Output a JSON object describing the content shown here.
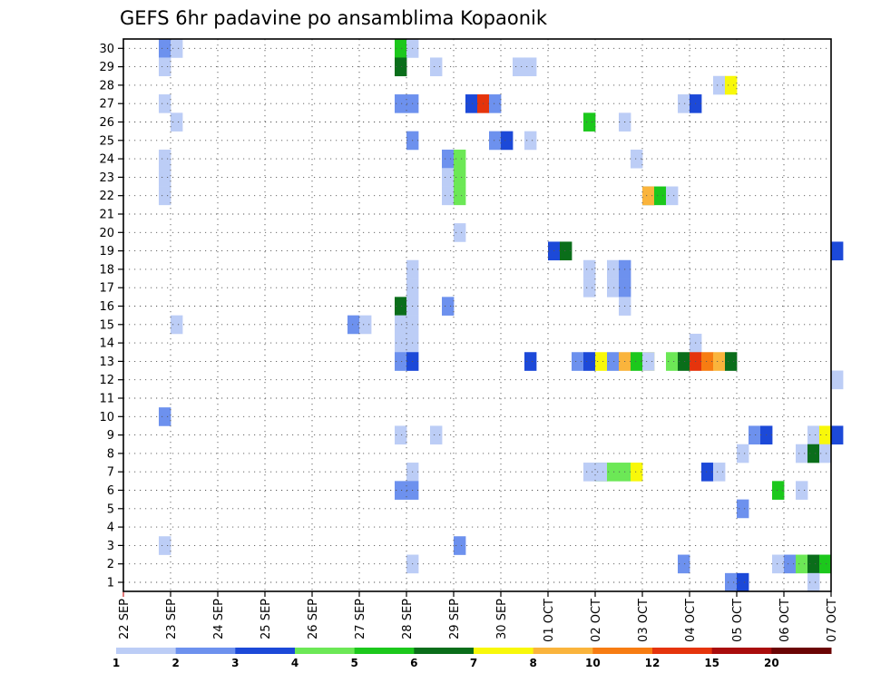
{
  "chart_data": {
    "type": "heatmap",
    "title": "GEFS 6hr padavine po ansamblima Kopaonik",
    "y_categories": [
      "1",
      "2",
      "3",
      "4",
      "5",
      "6",
      "7",
      "8",
      "9",
      "10",
      "11",
      "12",
      "13",
      "14",
      "15",
      "16",
      "17",
      "18",
      "19",
      "20",
      "21",
      "22",
      "23",
      "24",
      "25",
      "26",
      "27",
      "28",
      "29",
      "30"
    ],
    "x_tick_labels": [
      "22 SEP",
      "23 SEP",
      "24 SEP",
      "25 SEP",
      "26 SEP",
      "27 SEP",
      "28 SEP",
      "29 SEP",
      "30 SEP",
      "01 OCT",
      "02 OCT",
      "03 OCT",
      "04 OCT",
      "05 OCT",
      "06 OCT",
      "07 OCT"
    ],
    "x_range_days": [
      0,
      15
    ],
    "steps_per_day": 4,
    "grid": true,
    "colorbar": {
      "placement": "bottom",
      "labels": [
        "1",
        "2",
        "3",
        "4",
        "5",
        "6",
        "7",
        "8",
        "10",
        "12",
        "15",
        "20"
      ],
      "colors": [
        "#bccdf6",
        "#6d91ee",
        "#1c49d8",
        "#6ce856",
        "#1cc81c",
        "#0a6e1a",
        "#f8f80a",
        "#fab43c",
        "#f77c12",
        "#e5340c",
        "#a90c0c",
        "#6b0404"
      ]
    },
    "cells_day_step_member_category": [
      [
        0,
        3,
        30,
        1
      ],
      [
        1,
        0,
        30,
        0
      ],
      [
        5,
        3,
        30,
        4
      ],
      [
        5,
        4,
        30,
        0
      ],
      [
        0,
        3,
        29,
        0
      ],
      [
        5,
        3,
        29,
        5
      ],
      [
        6,
        2,
        29,
        0
      ],
      [
        8,
        1,
        29,
        0
      ],
      [
        8,
        2,
        29,
        0
      ],
      [
        12,
        2,
        28,
        0
      ],
      [
        12,
        3,
        28,
        6
      ],
      [
        0,
        3,
        27,
        0
      ],
      [
        5,
        3,
        27,
        1
      ],
      [
        5,
        4,
        27,
        1
      ],
      [
        7,
        1,
        27,
        2
      ],
      [
        7,
        2,
        27,
        9
      ],
      [
        7,
        3,
        27,
        1
      ],
      [
        11,
        3,
        27,
        0
      ],
      [
        11,
        4,
        27,
        2
      ],
      [
        1,
        0,
        26,
        0
      ],
      [
        9,
        3,
        26,
        4
      ],
      [
        10,
        2,
        26,
        0
      ],
      [
        5,
        4,
        25,
        1
      ],
      [
        7,
        3,
        25,
        1
      ],
      [
        8,
        0,
        25,
        2
      ],
      [
        8,
        2,
        25,
        0
      ],
      [
        0,
        3,
        24,
        0
      ],
      [
        6,
        3,
        24,
        1
      ],
      [
        6,
        4,
        24,
        3
      ],
      [
        10,
        3,
        24,
        0
      ],
      [
        0,
        3,
        23,
        0
      ],
      [
        6,
        3,
        23,
        0
      ],
      [
        6,
        4,
        23,
        3
      ],
      [
        0,
        3,
        22,
        0
      ],
      [
        6,
        3,
        22,
        0
      ],
      [
        6,
        4,
        22,
        3
      ],
      [
        10,
        4,
        22,
        5
      ],
      [
        11,
        0,
        22,
        7
      ],
      [
        11,
        1,
        22,
        4
      ],
      [
        11,
        2,
        22,
        0
      ],
      [
        6,
        4,
        20,
        0
      ],
      [
        9,
        0,
        19,
        2
      ],
      [
        9,
        1,
        19,
        5
      ],
      [
        15,
        0,
        19,
        2
      ],
      [
        5,
        4,
        18,
        0
      ],
      [
        9,
        3,
        18,
        0
      ],
      [
        10,
        1,
        18,
        0
      ],
      [
        10,
        2,
        18,
        1
      ],
      [
        5,
        4,
        17,
        0
      ],
      [
        9,
        3,
        17,
        0
      ],
      [
        10,
        1,
        17,
        0
      ],
      [
        10,
        2,
        17,
        1
      ],
      [
        5,
        3,
        16,
        5
      ],
      [
        5,
        4,
        16,
        0
      ],
      [
        6,
        3,
        16,
        1
      ],
      [
        10,
        2,
        16,
        0
      ],
      [
        4,
        3,
        15,
        1
      ],
      [
        4,
        4,
        15,
        0
      ],
      [
        5,
        3,
        15,
        0
      ],
      [
        5,
        4,
        15,
        0
      ],
      [
        1,
        0,
        15,
        0
      ],
      [
        5,
        3,
        14,
        0
      ],
      [
        5,
        4,
        14,
        0
      ],
      [
        11,
        4,
        14,
        0
      ],
      [
        5,
        3,
        13,
        1
      ],
      [
        5,
        4,
        13,
        2
      ],
      [
        8,
        2,
        13,
        2
      ],
      [
        9,
        2,
        13,
        1
      ],
      [
        9,
        3,
        13,
        2
      ],
      [
        10,
        0,
        13,
        6
      ],
      [
        10,
        1,
        13,
        1
      ],
      [
        10,
        2,
        13,
        7
      ],
      [
        10,
        3,
        13,
        4
      ],
      [
        10,
        4,
        13,
        6
      ],
      [
        11,
        0,
        13,
        0
      ],
      [
        11,
        2,
        13,
        3
      ],
      [
        11,
        3,
        13,
        5
      ],
      [
        11,
        4,
        13,
        9
      ],
      [
        12,
        1,
        13,
        8
      ],
      [
        12,
        2,
        13,
        7
      ],
      [
        12,
        3,
        13,
        5
      ],
      [
        15,
        0,
        12,
        0
      ],
      [
        0,
        3,
        10,
        1
      ],
      [
        5,
        3,
        9,
        0
      ],
      [
        6,
        2,
        9,
        0
      ],
      [
        13,
        1,
        9,
        1
      ],
      [
        13,
        2,
        9,
        2
      ],
      [
        14,
        2,
        9,
        0
      ],
      [
        14,
        3,
        9,
        6
      ],
      [
        15,
        0,
        9,
        2
      ],
      [
        13,
        0,
        8,
        0
      ],
      [
        14,
        1,
        8,
        0
      ],
      [
        14,
        2,
        8,
        5
      ],
      [
        14,
        3,
        8,
        0
      ],
      [
        5,
        4,
        7,
        0
      ],
      [
        9,
        3,
        7,
        0
      ],
      [
        9,
        4,
        7,
        4
      ],
      [
        10,
        0,
        7,
        0
      ],
      [
        10,
        1,
        7,
        3
      ],
      [
        10,
        2,
        7,
        3
      ],
      [
        10,
        3,
        7,
        6
      ],
      [
        12,
        1,
        7,
        2
      ],
      [
        12,
        2,
        7,
        0
      ],
      [
        5,
        3,
        6,
        1
      ],
      [
        5,
        4,
        6,
        1
      ],
      [
        13,
        3,
        6,
        4
      ],
      [
        14,
        1,
        6,
        0
      ],
      [
        12,
        4,
        5,
        1
      ],
      [
        0,
        3,
        3,
        0
      ],
      [
        6,
        4,
        3,
        1
      ],
      [
        6,
        0,
        2,
        0
      ],
      [
        11,
        3,
        2,
        1
      ],
      [
        13,
        3,
        2,
        0
      ],
      [
        14,
        0,
        2,
        1
      ],
      [
        14,
        1,
        2,
        3
      ],
      [
        14,
        2,
        2,
        5
      ],
      [
        14,
        3,
        2,
        4
      ],
      [
        12,
        3,
        1,
        1
      ],
      [
        12,
        4,
        1,
        2
      ],
      [
        14,
        2,
        1,
        0
      ]
    ]
  }
}
